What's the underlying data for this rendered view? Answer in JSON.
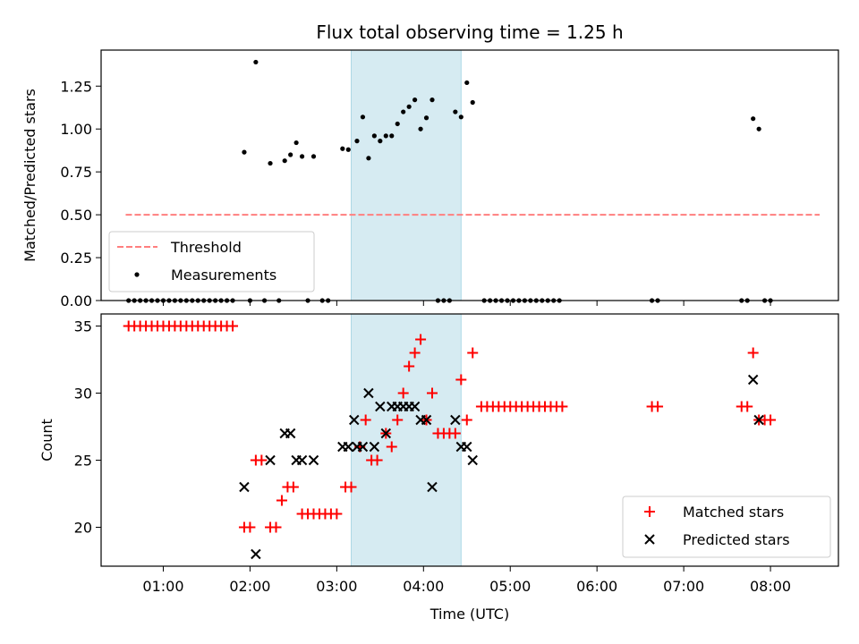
{
  "chart_data": [
    {
      "type": "scatter",
      "title": "Flux total observing time = 1.25 h",
      "ylabel": "Matched/Predicted stars",
      "xlabel": "",
      "xlim": [
        "00:17",
        "08:47"
      ],
      "ylim": [
        0,
        1.46
      ],
      "yticks": [
        "0.00",
        "0.25",
        "0.50",
        "0.75",
        "1.00",
        "1.25"
      ],
      "highlight_span": [
        "03:10",
        "04:26"
      ],
      "legend": {
        "placement": "lower-left",
        "entries": [
          "Threshold",
          "Measurements"
        ]
      },
      "threshold": {
        "name": "Threshold",
        "value": 0.5,
        "x_range": [
          "00:34",
          "08:34"
        ],
        "color": "#ff7f7f",
        "style": "dashed"
      },
      "series": [
        {
          "name": "Measurements",
          "color": "#000000",
          "points": [
            [
              "00:36",
              0
            ],
            [
              "00:40",
              0
            ],
            [
              "00:44",
              0
            ],
            [
              "00:48",
              0
            ],
            [
              "00:52",
              0
            ],
            [
              "00:56",
              0
            ],
            [
              "01:00",
              0
            ],
            [
              "01:04",
              0
            ],
            [
              "01:08",
              0
            ],
            [
              "01:12",
              0
            ],
            [
              "01:16",
              0
            ],
            [
              "01:20",
              0
            ],
            [
              "01:24",
              0
            ],
            [
              "01:28",
              0
            ],
            [
              "01:32",
              0
            ],
            [
              "01:36",
              0
            ],
            [
              "01:40",
              0
            ],
            [
              "01:44",
              0
            ],
            [
              "01:48",
              0
            ],
            [
              "01:56",
              0.865
            ],
            [
              "02:00",
              0
            ],
            [
              "02:04",
              1.39
            ],
            [
              "02:10",
              0
            ],
            [
              "02:14",
              0.8
            ],
            [
              "02:20",
              0
            ],
            [
              "02:24",
              0.815
            ],
            [
              "02:28",
              0.85
            ],
            [
              "02:32",
              0.92
            ],
            [
              "02:36",
              0.84
            ],
            [
              "02:40",
              0
            ],
            [
              "02:44",
              0.84
            ],
            [
              "02:50",
              0
            ],
            [
              "02:54",
              0
            ],
            [
              "03:04",
              0.885
            ],
            [
              "03:08",
              0.88
            ],
            [
              "03:14",
              0.93
            ],
            [
              "03:18",
              1.07
            ],
            [
              "03:22",
              0.83
            ],
            [
              "03:26",
              0.96
            ],
            [
              "03:30",
              0.93
            ],
            [
              "03:34",
              0.96
            ],
            [
              "03:38",
              0.96
            ],
            [
              "03:42",
              1.03
            ],
            [
              "03:46",
              1.1
            ],
            [
              "03:50",
              1.13
            ],
            [
              "03:54",
              1.17
            ],
            [
              "03:58",
              1.0
            ],
            [
              "04:02",
              1.065
            ],
            [
              "04:06",
              1.17
            ],
            [
              "04:10",
              0
            ],
            [
              "04:14",
              0
            ],
            [
              "04:18",
              0
            ],
            [
              "04:22",
              1.1
            ],
            [
              "04:26",
              1.07
            ],
            [
              "04:30",
              1.27
            ],
            [
              "04:34",
              1.155
            ],
            [
              "04:42",
              0
            ],
            [
              "04:46",
              0
            ],
            [
              "04:50",
              0
            ],
            [
              "04:54",
              0
            ],
            [
              "04:58",
              0
            ],
            [
              "05:02",
              0
            ],
            [
              "05:06",
              0
            ],
            [
              "05:10",
              0
            ],
            [
              "05:14",
              0
            ],
            [
              "05:18",
              0
            ],
            [
              "05:22",
              0
            ],
            [
              "05:26",
              0
            ],
            [
              "05:30",
              0
            ],
            [
              "05:34",
              0
            ],
            [
              "06:38",
              0
            ],
            [
              "06:42",
              0
            ],
            [
              "07:40",
              0
            ],
            [
              "07:44",
              0
            ],
            [
              "07:48",
              1.06
            ],
            [
              "07:52",
              1.0
            ],
            [
              "07:56",
              0
            ],
            [
              "08:00",
              0
            ]
          ]
        }
      ]
    },
    {
      "type": "scatter",
      "title": "",
      "ylabel": "Count",
      "xlabel": "Time (UTC)",
      "xlim": [
        "00:17",
        "08:47"
      ],
      "ylim": [
        17.1,
        35.9
      ],
      "yticks": [
        "20",
        "25",
        "30",
        "35"
      ],
      "xticks": [
        "01:00",
        "02:00",
        "03:00",
        "04:00",
        "05:00",
        "06:00",
        "07:00",
        "08:00"
      ],
      "highlight_span": [
        "03:10",
        "04:26"
      ],
      "legend": {
        "placement": "lower-right",
        "entries": [
          "Matched stars",
          "Predicted stars"
        ]
      },
      "series": [
        {
          "name": "Matched stars",
          "marker": "plus",
          "color": "#ff0000",
          "points": [
            [
              "00:36",
              35
            ],
            [
              "00:40",
              35
            ],
            [
              "00:44",
              35
            ],
            [
              "00:48",
              35
            ],
            [
              "00:52",
              35
            ],
            [
              "00:56",
              35
            ],
            [
              "01:00",
              35
            ],
            [
              "01:04",
              35
            ],
            [
              "01:08",
              35
            ],
            [
              "01:12",
              35
            ],
            [
              "01:16",
              35
            ],
            [
              "01:20",
              35
            ],
            [
              "01:24",
              35
            ],
            [
              "01:28",
              35
            ],
            [
              "01:32",
              35
            ],
            [
              "01:36",
              35
            ],
            [
              "01:40",
              35
            ],
            [
              "01:44",
              35
            ],
            [
              "01:48",
              35
            ],
            [
              "01:56",
              20
            ],
            [
              "02:00",
              20
            ],
            [
              "02:04",
              25
            ],
            [
              "02:08",
              25
            ],
            [
              "02:14",
              20
            ],
            [
              "02:18",
              20
            ],
            [
              "02:22",
              22
            ],
            [
              "02:26",
              23
            ],
            [
              "02:30",
              23
            ],
            [
              "02:36",
              21
            ],
            [
              "02:40",
              21
            ],
            [
              "02:44",
              21
            ],
            [
              "02:48",
              21
            ],
            [
              "02:52",
              21
            ],
            [
              "02:56",
              21
            ],
            [
              "03:00",
              21
            ],
            [
              "03:06",
              23
            ],
            [
              "03:10",
              23
            ],
            [
              "03:16",
              26
            ],
            [
              "03:20",
              28
            ],
            [
              "03:24",
              25
            ],
            [
              "03:28",
              25
            ],
            [
              "03:34",
              27
            ],
            [
              "03:38",
              26
            ],
            [
              "03:42",
              28
            ],
            [
              "03:46",
              30
            ],
            [
              "03:50",
              32
            ],
            [
              "03:54",
              33
            ],
            [
              "03:58",
              34
            ],
            [
              "04:02",
              28
            ],
            [
              "04:06",
              30
            ],
            [
              "04:10",
              27
            ],
            [
              "04:14",
              27
            ],
            [
              "04:18",
              27
            ],
            [
              "04:22",
              27
            ],
            [
              "04:26",
              31
            ],
            [
              "04:30",
              28
            ],
            [
              "04:34",
              33
            ],
            [
              "04:40",
              29
            ],
            [
              "04:44",
              29
            ],
            [
              "04:48",
              29
            ],
            [
              "04:52",
              29
            ],
            [
              "04:56",
              29
            ],
            [
              "05:00",
              29
            ],
            [
              "05:04",
              29
            ],
            [
              "05:08",
              29
            ],
            [
              "05:12",
              29
            ],
            [
              "05:16",
              29
            ],
            [
              "05:20",
              29
            ],
            [
              "05:24",
              29
            ],
            [
              "05:28",
              29
            ],
            [
              "05:32",
              29
            ],
            [
              "05:36",
              29
            ],
            [
              "06:38",
              29
            ],
            [
              "06:42",
              29
            ],
            [
              "07:40",
              29
            ],
            [
              "07:44",
              29
            ],
            [
              "07:48",
              33
            ],
            [
              "07:52",
              28
            ],
            [
              "07:56",
              28
            ],
            [
              "08:00",
              28
            ]
          ]
        },
        {
          "name": "Predicted stars",
          "marker": "x",
          "color": "#000000",
          "points": [
            [
              "01:56",
              23
            ],
            [
              "02:04",
              18
            ],
            [
              "02:14",
              25
            ],
            [
              "02:24",
              27
            ],
            [
              "02:28",
              27
            ],
            [
              "02:32",
              25
            ],
            [
              "02:36",
              25
            ],
            [
              "02:44",
              25
            ],
            [
              "03:04",
              26
            ],
            [
              "03:08",
              26
            ],
            [
              "03:12",
              28
            ],
            [
              "03:14",
              26
            ],
            [
              "03:18",
              26
            ],
            [
              "03:22",
              30
            ],
            [
              "03:26",
              26
            ],
            [
              "03:30",
              29
            ],
            [
              "03:34",
              27
            ],
            [
              "03:38",
              29
            ],
            [
              "03:42",
              29
            ],
            [
              "03:46",
              29
            ],
            [
              "03:50",
              29
            ],
            [
              "03:54",
              29
            ],
            [
              "03:58",
              28
            ],
            [
              "04:02",
              28
            ],
            [
              "04:06",
              23
            ],
            [
              "04:22",
              28
            ],
            [
              "04:26",
              26
            ],
            [
              "04:30",
              26
            ],
            [
              "04:34",
              25
            ],
            [
              "07:48",
              31
            ],
            [
              "07:52",
              28
            ]
          ]
        }
      ]
    }
  ]
}
